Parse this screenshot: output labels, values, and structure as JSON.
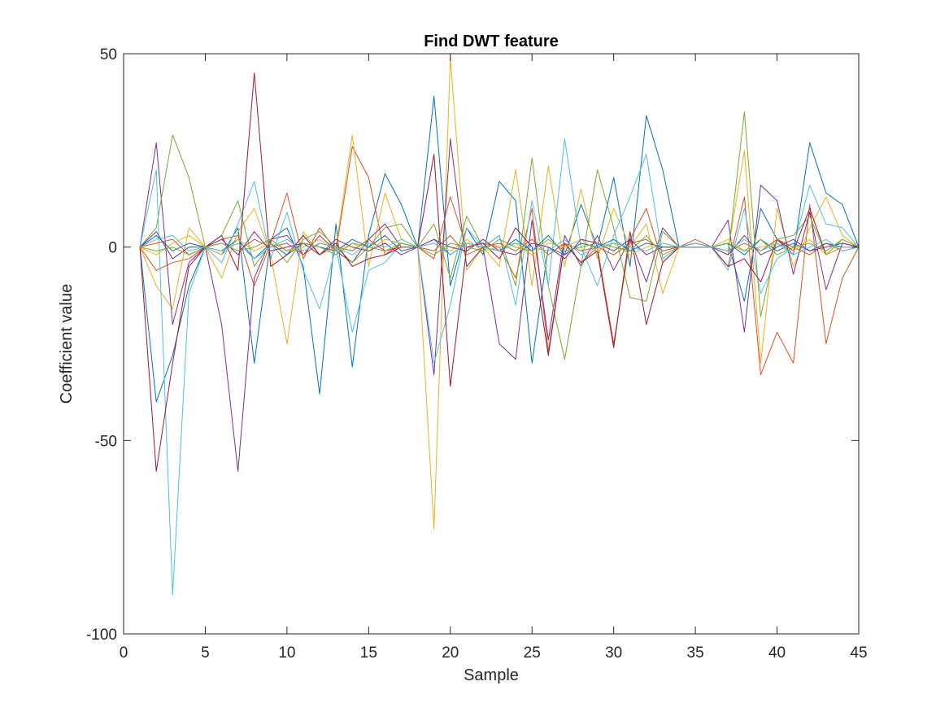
{
  "chart_data": {
    "type": "line",
    "title": "Find DWT feature",
    "xlabel": "Sample",
    "ylabel": "Coefficient value",
    "xlim": [
      0,
      45
    ],
    "ylim": [
      -100,
      50
    ],
    "xticks": [
      0,
      5,
      10,
      15,
      20,
      25,
      30,
      35,
      40,
      45
    ],
    "yticks": [
      -100,
      -50,
      0,
      50
    ],
    "xtick_labels": [
      "0",
      "5",
      "10",
      "15",
      "20",
      "25",
      "30",
      "35",
      "40",
      "45"
    ],
    "ytick_labels": [
      "-100",
      "-50",
      "0",
      "50"
    ],
    "grid": false,
    "legend": "none",
    "x": [
      1,
      2,
      3,
      4,
      5,
      6,
      7,
      8,
      9,
      10,
      11,
      12,
      13,
      14,
      15,
      16,
      17,
      18,
      19,
      20,
      21,
      22,
      23,
      24,
      25,
      26,
      27,
      28,
      29,
      30,
      31,
      32,
      33,
      34,
      35,
      36,
      37,
      38,
      39,
      40,
      41,
      42,
      43,
      44,
      45
    ],
    "colors": [
      "#0072BD",
      "#D95319",
      "#EDB120",
      "#7E2F8E",
      "#77AC30",
      "#4DBEEE",
      "#A2142F"
    ],
    "series": [
      {
        "values": [
          0,
          -40,
          -28,
          -10,
          0,
          -2,
          5,
          -30,
          2,
          5,
          -5,
          -38,
          6,
          -31,
          3,
          19,
          11,
          0,
          39,
          -10,
          5,
          -2,
          17,
          12,
          -30,
          0,
          -2,
          11,
          0,
          18,
          -5,
          34,
          20,
          0,
          1,
          0,
          1,
          -14,
          10,
          2,
          -2,
          27,
          14,
          11,
          0
        ]
      },
      {
        "values": [
          0,
          -6,
          -4,
          -3,
          0,
          2,
          3,
          -10,
          1,
          14,
          -3,
          5,
          -1,
          26,
          18,
          -2,
          1,
          0,
          -3,
          13,
          0,
          1,
          0,
          -8,
          10,
          -27,
          1,
          -4,
          0,
          -25,
          2,
          10,
          -4,
          0,
          2,
          0,
          -5,
          13,
          -33,
          -22,
          -30,
          11,
          -25,
          -8,
          0
        ]
      },
      {
        "values": [
          0,
          -10,
          -16,
          5,
          0,
          -8,
          4,
          10,
          -2,
          -25,
          4,
          -2,
          0,
          29,
          -5,
          14,
          2,
          0,
          -73,
          49,
          -6,
          0,
          -5,
          20,
          -10,
          21,
          -5,
          15,
          -3,
          10,
          0,
          6,
          -12,
          0,
          1,
          0,
          -1,
          25,
          -30,
          10,
          -5,
          5,
          13,
          3,
          0
        ]
      },
      {
        "values": [
          0,
          27,
          -20,
          -4,
          0,
          -20,
          -58,
          -8,
          2,
          3,
          -2,
          3,
          -1,
          -4,
          2,
          6,
          0,
          0,
          -33,
          28,
          -5,
          0,
          -25,
          -29,
          7,
          -24,
          3,
          -5,
          3,
          -6,
          2,
          -9,
          5,
          0,
          1,
          0,
          7,
          -22,
          16,
          12,
          -7,
          9,
          -11,
          1,
          0
        ]
      },
      {
        "values": [
          0,
          5,
          29,
          18,
          0,
          3,
          12,
          -5,
          1,
          -4,
          2,
          4,
          0,
          -4,
          0,
          5,
          6,
          0,
          6,
          -8,
          8,
          0,
          3,
          -10,
          23,
          -10,
          -29,
          -5,
          20,
          5,
          -13,
          -14,
          4,
          0,
          0,
          0,
          -2,
          35,
          -18,
          2,
          3,
          8,
          -2,
          2,
          0
        ]
      },
      {
        "values": [
          0,
          20,
          -90,
          -12,
          0,
          -4,
          6,
          17,
          -3,
          9,
          -6,
          -16,
          0,
          -22,
          -6,
          -4,
          1,
          0,
          -30,
          -15,
          5,
          0,
          3,
          -15,
          12,
          -10,
          28,
          0,
          -10,
          3,
          13,
          24,
          -3,
          0,
          1,
          0,
          -6,
          10,
          -12,
          -3,
          0,
          16,
          6,
          5,
          0
        ]
      },
      {
        "values": [
          0,
          -58,
          -30,
          -5,
          0,
          3,
          -6,
          45,
          -5,
          -2,
          3,
          -2,
          1,
          -5,
          -3,
          -2,
          0,
          0,
          24,
          -36,
          0,
          1,
          -3,
          5,
          0,
          -28,
          1,
          -4,
          -1,
          -26,
          4,
          -20,
          -4,
          0,
          0,
          0,
          -5,
          -3,
          -9,
          2,
          -1,
          10,
          -2,
          0,
          0
        ]
      },
      {
        "values": [
          0,
          3,
          -1,
          1,
          0,
          -1,
          2,
          -3,
          1,
          -2,
          1,
          0,
          -1,
          2,
          0,
          3,
          -1,
          0,
          2,
          -2,
          1,
          0,
          -1,
          2,
          -1,
          3,
          -2,
          1,
          0,
          2,
          -1,
          1,
          0,
          0,
          0,
          0,
          1,
          -2,
          2,
          -1,
          1,
          -1,
          1,
          0,
          0
        ]
      },
      {
        "values": [
          0,
          1,
          2,
          -2,
          0,
          1,
          -1,
          2,
          0,
          1,
          -2,
          1,
          0,
          -1,
          2,
          -1,
          0,
          0,
          -1,
          3,
          -2,
          0,
          1,
          -1,
          2,
          -2,
          1,
          -1,
          0,
          -2,
          1,
          2,
          -1,
          0,
          0,
          0,
          -1,
          1,
          -1,
          2,
          0,
          -2,
          1,
          -1,
          0
        ]
      },
      {
        "values": [
          0,
          -2,
          1,
          3,
          0,
          -2,
          2,
          -1,
          1,
          -1,
          0,
          2,
          -1,
          1,
          -1,
          2,
          1,
          0,
          1,
          -1,
          2,
          -1,
          0,
          1,
          -2,
          1,
          0,
          2,
          -1,
          1,
          -2,
          0,
          1,
          0,
          0,
          0,
          2,
          -1,
          0,
          1,
          -1,
          2,
          -2,
          0,
          0
        ]
      },
      {
        "values": [
          0,
          4,
          -3,
          0,
          0,
          2,
          -2,
          4,
          -1,
          0,
          1,
          -2,
          2,
          0,
          -1,
          1,
          -2,
          0,
          2,
          0,
          -1,
          2,
          -1,
          -2,
          1,
          0,
          -3,
          2,
          1,
          -1,
          2,
          -2,
          0,
          0,
          0,
          0,
          -2,
          3,
          -2,
          0,
          2,
          -1,
          0,
          1,
          0
        ]
      },
      {
        "values": [
          0,
          -1,
          0,
          -2,
          0,
          1,
          -1,
          0,
          2,
          -1,
          1,
          0,
          -2,
          1,
          0,
          -1,
          1,
          0,
          -2,
          1,
          0,
          -1,
          2,
          0,
          -1,
          2,
          -1,
          0,
          1,
          0,
          -1,
          3,
          -2,
          0,
          0,
          0,
          1,
          -1,
          2,
          -2,
          0,
          1,
          -1,
          2,
          0
        ]
      },
      {
        "values": [
          0,
          2,
          3,
          -1,
          0,
          -1,
          1,
          -3,
          0,
          2,
          -1,
          1,
          0,
          -2,
          1,
          0,
          2,
          0,
          1,
          -2,
          1,
          0,
          -1,
          1,
          0,
          -1,
          2,
          -2,
          0,
          1,
          0,
          -1,
          1,
          0,
          0,
          0,
          -1,
          2,
          -1,
          1,
          -2,
          0,
          2,
          -1,
          0
        ]
      }
    ]
  }
}
